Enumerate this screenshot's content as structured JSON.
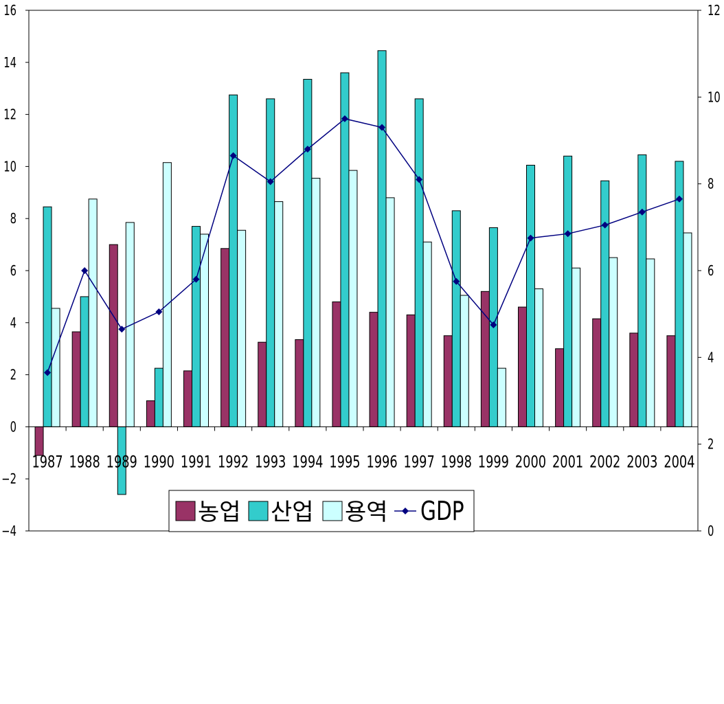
{
  "chart_data": {
    "type": "bar",
    "title": "",
    "xlabel": "",
    "ylabel": "",
    "categories": [
      "1987",
      "1988",
      "1989",
      "1990",
      "1991",
      "1992",
      "1993",
      "1994",
      "1995",
      "1996",
      "1997",
      "1998",
      "1999",
      "2000",
      "2001",
      "2002",
      "2003",
      "2004"
    ],
    "series": [
      {
        "name": "농업",
        "type": "bar",
        "axis": "left",
        "color": "#993366",
        "values": [
          -1.1,
          3.65,
          7.0,
          1.0,
          2.15,
          6.85,
          3.25,
          3.35,
          4.8,
          4.4,
          4.3,
          3.5,
          5.2,
          4.6,
          3.0,
          4.15,
          3.6,
          3.5
        ]
      },
      {
        "name": "산업",
        "type": "bar",
        "axis": "left",
        "color": "#33CCCC",
        "values": [
          8.45,
          5.0,
          -2.6,
          2.25,
          7.7,
          12.75,
          12.6,
          13.35,
          13.6,
          14.45,
          12.6,
          8.3,
          7.65,
          10.05,
          10.4,
          9.45,
          10.45,
          10.2
        ]
      },
      {
        "name": "용역",
        "type": "bar",
        "axis": "left",
        "color": "#CCFFFF",
        "values": [
          4.55,
          8.75,
          7.85,
          10.15,
          7.4,
          7.55,
          8.65,
          9.55,
          9.85,
          8.8,
          7.1,
          5.05,
          2.25,
          5.3,
          6.1,
          6.5,
          6.45,
          7.45
        ]
      },
      {
        "name": "GDP",
        "type": "line",
        "axis": "right",
        "color": "#000080",
        "values": [
          3.65,
          6.0,
          4.65,
          5.05,
          5.8,
          8.65,
          8.05,
          8.8,
          9.5,
          9.3,
          8.1,
          5.75,
          4.75,
          6.75,
          6.85,
          7.05,
          7.35,
          7.65
        ]
      }
    ],
    "y_left": {
      "range": [
        -4,
        16
      ],
      "ticks": [
        "-4",
        "-2",
        "0",
        "2",
        "4",
        "6",
        "8",
        "10",
        "12",
        "14",
        "16"
      ]
    },
    "y_right": {
      "range": [
        0,
        12
      ],
      "ticks": [
        "0",
        "2",
        "4",
        "6",
        "8",
        "10",
        "12"
      ]
    },
    "grid": false,
    "legend_placement": "bottom-center"
  }
}
